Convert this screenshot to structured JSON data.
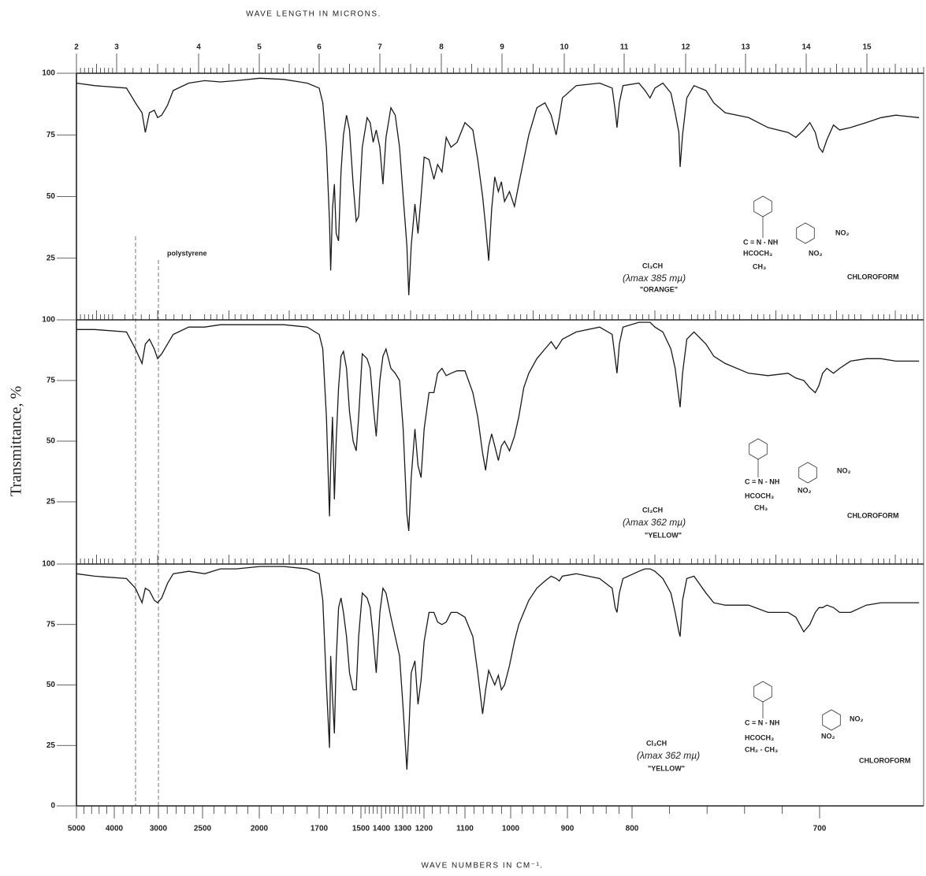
{
  "chart_data": {
    "type": "line",
    "top_axis_label": "WAVE LENGTH IN MICRONS.",
    "bottom_axis_label": "WAVE NUMBERS IN CM⁻¹.",
    "ylabel": "Transmittance, %",
    "reference_label": "polystyrene",
    "xlim": [
      2,
      16
    ],
    "xticks": [
      2,
      3,
      4,
      5,
      6,
      7,
      8,
      9,
      10,
      11,
      12,
      13,
      14,
      15
    ],
    "x2ticks": [
      5000,
      4000,
      3000,
      2500,
      2000,
      1700,
      1500,
      1400,
      1300,
      1200,
      1100,
      1000,
      900,
      800,
      700
    ],
    "ylim": [
      0,
      100
    ],
    "color": "#1a1a1a",
    "x": [
      2.0,
      2.45,
      3.12,
      3.23,
      3.31,
      3.35,
      3.4,
      3.46,
      3.5,
      3.55,
      3.62,
      3.69,
      3.88,
      4.1,
      4.36,
      4.62,
      5.01,
      5.41,
      5.8,
      6.0,
      6.06,
      6.12,
      6.17,
      6.19,
      6.22,
      6.25,
      6.28,
      6.32,
      6.36,
      6.4,
      6.45,
      6.5,
      6.56,
      6.61,
      6.65,
      6.71,
      6.79,
      6.84,
      6.89,
      6.94,
      7.0,
      7.05,
      7.1,
      7.18,
      7.25,
      7.32,
      7.38,
      7.44,
      7.47,
      7.51,
      7.57,
      7.62,
      7.67,
      7.72,
      7.8,
      7.88,
      7.94,
      8.01,
      8.08,
      8.16,
      8.26,
      8.39,
      8.52,
      8.6,
      8.68,
      8.73,
      8.78,
      8.83,
      8.88,
      8.94,
      8.99,
      9.04,
      9.12,
      9.2,
      9.27,
      9.35,
      9.43,
      9.56,
      9.69,
      9.79,
      9.87,
      9.92,
      9.97,
      10.2,
      10.59,
      10.8,
      10.85,
      10.88,
      10.92,
      10.98,
      11.24,
      11.34,
      11.42,
      11.5,
      11.63,
      11.76,
      11.83,
      11.89,
      11.91,
      11.95,
      12.02,
      12.14,
      12.34,
      12.47,
      12.66,
      13.05,
      13.37,
      13.7,
      13.83,
      13.96,
      14.06,
      14.15,
      14.21,
      14.27,
      14.34,
      14.45,
      14.55,
      14.73,
      14.99,
      15.25,
      15.51,
      15.92
    ],
    "panels": [
      {
        "yticks": [
          25,
          50,
          75,
          100
        ],
        "solvent_formula": "Cl₃CH",
        "lambda_max": "(λmax 385 mµ)",
        "color_name": "\"ORANGE\"",
        "solvent": "CHLOROFORM",
        "structure": [
          "C = N - NH",
          "NO₂",
          "NO₂",
          "HCOCH₃",
          "CH₃"
        ],
        "values": [
          96,
          95,
          94,
          88,
          84,
          76,
          84,
          85,
          82,
          83,
          87,
          93,
          96,
          97,
          96.5,
          97,
          98,
          97.5,
          96,
          94,
          88,
          70,
          40,
          20,
          45,
          55,
          35,
          32,
          60,
          75,
          83,
          77,
          55,
          40,
          42,
          70,
          82,
          80,
          72,
          77,
          70,
          55,
          74,
          86,
          83,
          70,
          50,
          30,
          10,
          30,
          47,
          35,
          50,
          66,
          65,
          57,
          63,
          60,
          74,
          70,
          72,
          80,
          77,
          65,
          50,
          38,
          24,
          45,
          58,
          52,
          56,
          48,
          52,
          46,
          55,
          65,
          75,
          86,
          88,
          83,
          75,
          82,
          90,
          95,
          96,
          94,
          85,
          78,
          88,
          95,
          96,
          93,
          90,
          94,
          96,
          92,
          84,
          76,
          62,
          75,
          90,
          95,
          93,
          88,
          84,
          82,
          78,
          76,
          74,
          77,
          80,
          76,
          70,
          68,
          73,
          79,
          77,
          78,
          80,
          82,
          83,
          82
        ]
      },
      {
        "yticks": [
          25,
          50,
          75,
          100
        ],
        "solvent_formula": "Cl₃CH",
        "lambda_max": "(λmax 362 mµ)",
        "color_name": "\"YELLOW\"",
        "solvent": "CHLOROFORM",
        "structure": [
          "C = N - NH",
          "NO₂",
          "NO₂",
          "HCOCH₃",
          "CH₃"
        ],
        "values": [
          96,
          96,
          95,
          88,
          82,
          90,
          92,
          88,
          84,
          86,
          90,
          94,
          97,
          97,
          98,
          98,
          98,
          98,
          97,
          94,
          88,
          60,
          19,
          40,
          60,
          26,
          50,
          72,
          85,
          87,
          80,
          62,
          50,
          46,
          60,
          86,
          84,
          80,
          65,
          52,
          75,
          85,
          88,
          80,
          78,
          75,
          55,
          20,
          13,
          35,
          55,
          40,
          35,
          55,
          70,
          70,
          78,
          80,
          77,
          78,
          79,
          79,
          70,
          60,
          45,
          38,
          48,
          53,
          48,
          42,
          48,
          50,
          46,
          52,
          60,
          72,
          78,
          84,
          88,
          91,
          88,
          90,
          92,
          95,
          97,
          94,
          84,
          78,
          90,
          97,
          99,
          99,
          99,
          97,
          95,
          88,
          80,
          68,
          64,
          78,
          92,
          95,
          90,
          85,
          82,
          78,
          77,
          78,
          76,
          75,
          72,
          70,
          73,
          78,
          80,
          78,
          80,
          83,
          84,
          84,
          83,
          83
        ]
      },
      {
        "yticks": [
          0,
          25,
          50,
          75,
          100
        ],
        "solvent_formula": "Cl₃CH",
        "lambda_max": "(λmax 362 mµ)",
        "color_name": "\"YELLOW\"",
        "solvent": "CHLOROFORM",
        "structure": [
          "C = N - NH",
          "NO₂",
          "NO₂",
          "HCOCH₃",
          "CH₂ - CH₃"
        ],
        "values": [
          96,
          95,
          94,
          90,
          84,
          90,
          89,
          85,
          84,
          86,
          92,
          96,
          97,
          96,
          98,
          98,
          99,
          99,
          98,
          96,
          85,
          50,
          24,
          62,
          45,
          30,
          60,
          82,
          86,
          80,
          70,
          55,
          48,
          48,
          70,
          88,
          86,
          82,
          70,
          55,
          80,
          90,
          88,
          78,
          70,
          62,
          40,
          15,
          30,
          55,
          60,
          42,
          52,
          68,
          80,
          80,
          76,
          75,
          76,
          80,
          80,
          78,
          70,
          55,
          38,
          48,
          56,
          53,
          50,
          54,
          48,
          50,
          58,
          68,
          75,
          80,
          85,
          90,
          93,
          95,
          94,
          93,
          95,
          96,
          94,
          90,
          82,
          80,
          88,
          94,
          97,
          98,
          98,
          97,
          94,
          88,
          80,
          72,
          70,
          85,
          94,
          95,
          88,
          84,
          83,
          83,
          80,
          80,
          78,
          72,
          75,
          80,
          82,
          82,
          83,
          82,
          80,
          80,
          83,
          84,
          84,
          84
        ]
      }
    ]
  }
}
